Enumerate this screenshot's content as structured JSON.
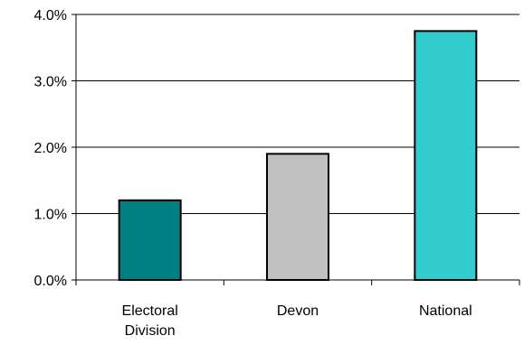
{
  "chart_data": {
    "type": "bar",
    "categories": [
      [
        "Electoral",
        "Division"
      ],
      [
        "Devon"
      ],
      [
        "National"
      ]
    ],
    "values": [
      1.2,
      1.9,
      3.75
    ],
    "bar_colors": [
      "#008080",
      "#C0C0C0",
      "#33CCCC"
    ],
    "ylim": [
      0,
      4
    ],
    "y_ticks": [
      0,
      1,
      2,
      3,
      4
    ],
    "y_tick_labels": [
      "0.0%",
      "1.0%",
      "2.0%",
      "3.0%",
      "4.0%"
    ],
    "gridlines": true,
    "legend": "none",
    "title": "",
    "xlabel": "",
    "ylabel": ""
  }
}
